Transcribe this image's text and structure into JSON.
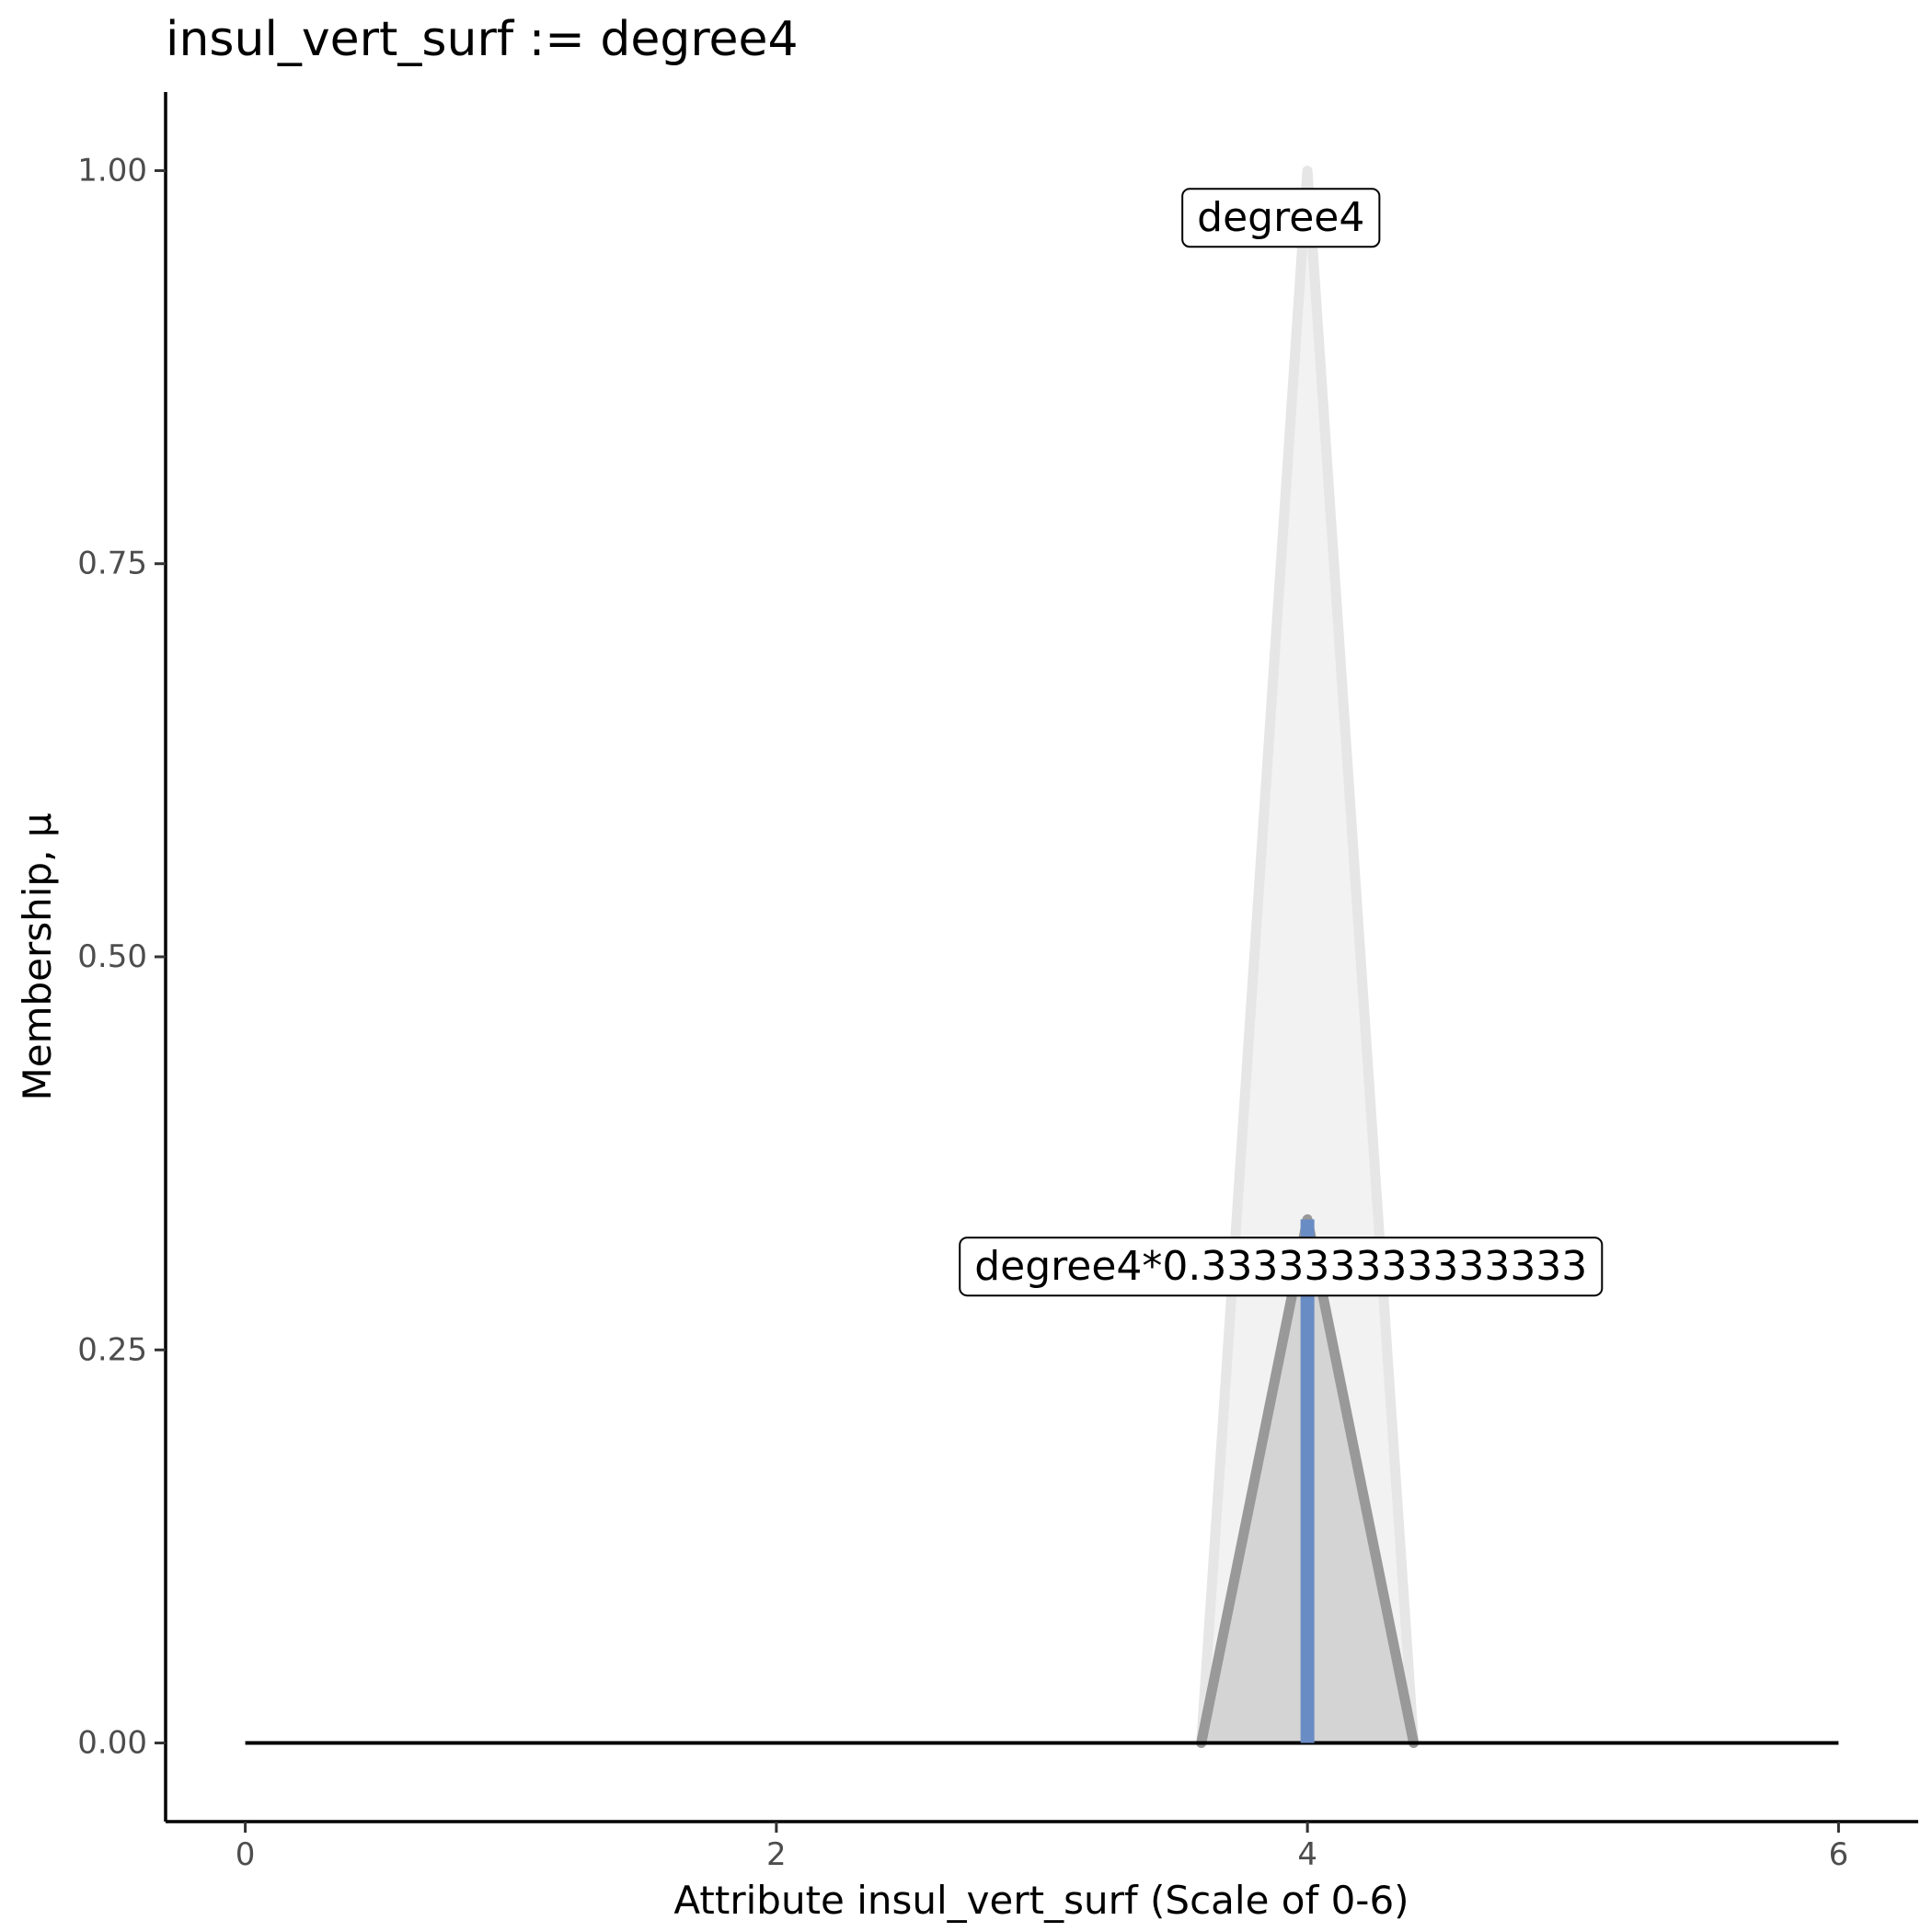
{
  "chart_data": {
    "type": "area",
    "title": "insul_vert_surf := degree4",
    "xlabel": "Attribute insul_vert_surf (Scale of 0-6)",
    "ylabel": "Membership, μ",
    "xlim": [
      -0.3,
      6.3
    ],
    "ylim": [
      -0.05,
      1.05
    ],
    "x_ticks": [
      0,
      2,
      4,
      6
    ],
    "x_tick_labels": [
      "0",
      "2",
      "4",
      "6"
    ],
    "y_ticks": [
      0,
      0.25,
      0.5,
      0.75,
      1.0
    ],
    "y_tick_labels": [
      "0.00",
      "0.25",
      "0.50",
      "0.75",
      "1.00"
    ],
    "grid": false,
    "legend": "none",
    "series": [
      {
        "label": "degree4",
        "points": [
          [
            3.6,
            0
          ],
          [
            4.0,
            1.0
          ],
          [
            4.4,
            0
          ]
        ],
        "line_color": "#e6e6e6",
        "fill_color": "#f2f2f2"
      },
      {
        "label": "degree4*0.333333333333333",
        "points": [
          [
            3.6,
            0
          ],
          [
            4.0,
            0.333
          ],
          [
            4.4,
            0
          ]
        ],
        "line_color": "#999999",
        "fill_color": "#d4d4d4"
      }
    ],
    "baseline": {
      "x": [
        0,
        6
      ],
      "y": 0,
      "color": "#000000"
    },
    "highlight": {
      "x": 4.0,
      "y_from": 0,
      "y_to": 0.333,
      "color": "#6a8cc4"
    }
  }
}
